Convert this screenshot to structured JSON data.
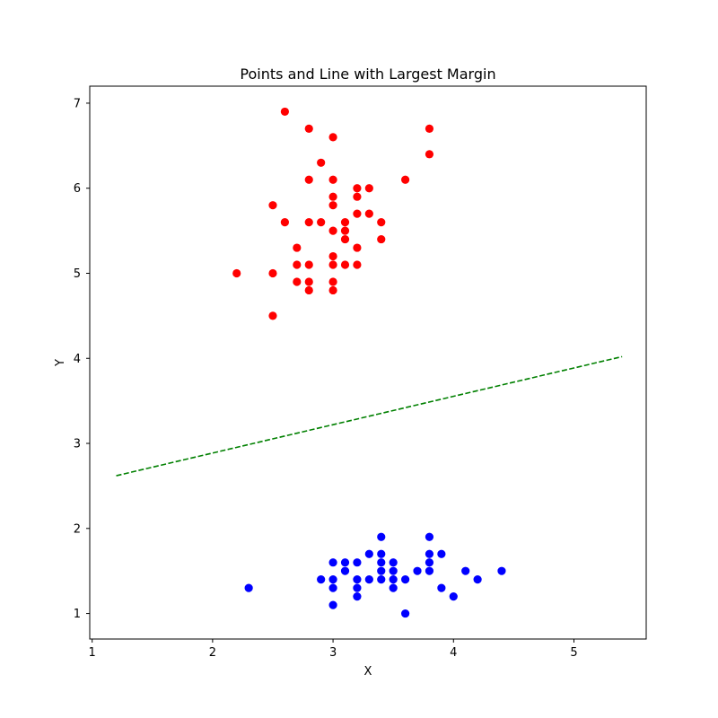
{
  "chart_data": {
    "type": "scatter",
    "title": "Points and Line with Largest Margin",
    "xlabel": "X",
    "ylabel": "Y",
    "xlim": [
      0.98,
      5.6
    ],
    "ylim": [
      0.7,
      7.2
    ],
    "xticks": [
      1,
      2,
      3,
      4,
      5
    ],
    "yticks": [
      1,
      2,
      3,
      4,
      5,
      6,
      7
    ],
    "grid": false,
    "legend": "none",
    "series": [
      {
        "kind": "points",
        "color": "#ff0000",
        "points": [
          [
            2.6,
            6.9
          ],
          [
            3.8,
            6.7
          ],
          [
            2.8,
            6.7
          ],
          [
            3.0,
            6.6
          ],
          [
            3.8,
            6.4
          ],
          [
            2.9,
            6.3
          ],
          [
            2.8,
            6.1
          ],
          [
            3.0,
            6.1
          ],
          [
            3.6,
            6.1
          ],
          [
            3.2,
            6.0
          ],
          [
            3.3,
            6.0
          ],
          [
            3.0,
            5.9
          ],
          [
            3.2,
            5.9
          ],
          [
            2.5,
            5.8
          ],
          [
            3.0,
            5.8
          ],
          [
            3.2,
            5.7
          ],
          [
            3.3,
            5.7
          ],
          [
            2.6,
            5.6
          ],
          [
            2.8,
            5.6
          ],
          [
            2.9,
            5.6
          ],
          [
            3.1,
            5.6
          ],
          [
            3.4,
            5.6
          ],
          [
            3.0,
            5.5
          ],
          [
            3.1,
            5.5
          ],
          [
            3.1,
            5.4
          ],
          [
            3.4,
            5.4
          ],
          [
            2.7,
            5.3
          ],
          [
            3.2,
            5.3
          ],
          [
            3.0,
            5.2
          ],
          [
            2.7,
            5.1
          ],
          [
            2.8,
            5.1
          ],
          [
            3.0,
            5.1
          ],
          [
            3.1,
            5.1
          ],
          [
            3.2,
            5.1
          ],
          [
            2.2,
            5.0
          ],
          [
            2.5,
            5.0
          ],
          [
            2.7,
            4.9
          ],
          [
            2.8,
            4.9
          ],
          [
            3.0,
            4.9
          ],
          [
            2.8,
            4.8
          ],
          [
            3.0,
            4.8
          ],
          [
            2.5,
            4.5
          ]
        ]
      },
      {
        "kind": "points",
        "color": "#0000ff",
        "points": [
          [
            3.4,
            1.9
          ],
          [
            3.8,
            1.9
          ],
          [
            3.3,
            1.7
          ],
          [
            3.4,
            1.7
          ],
          [
            3.8,
            1.7
          ],
          [
            3.9,
            1.7
          ],
          [
            3.0,
            1.6
          ],
          [
            3.1,
            1.6
          ],
          [
            3.2,
            1.6
          ],
          [
            3.4,
            1.6
          ],
          [
            3.5,
            1.6
          ],
          [
            3.8,
            1.6
          ],
          [
            3.1,
            1.5
          ],
          [
            3.4,
            1.5
          ],
          [
            3.5,
            1.5
          ],
          [
            3.7,
            1.5
          ],
          [
            3.8,
            1.5
          ],
          [
            4.1,
            1.5
          ],
          [
            4.4,
            1.5
          ],
          [
            2.9,
            1.4
          ],
          [
            3.0,
            1.4
          ],
          [
            3.2,
            1.4
          ],
          [
            3.3,
            1.4
          ],
          [
            3.4,
            1.4
          ],
          [
            3.5,
            1.4
          ],
          [
            3.6,
            1.4
          ],
          [
            4.2,
            1.4
          ],
          [
            2.3,
            1.3
          ],
          [
            3.0,
            1.3
          ],
          [
            3.2,
            1.3
          ],
          [
            3.5,
            1.3
          ],
          [
            3.9,
            1.3
          ],
          [
            3.2,
            1.2
          ],
          [
            4.0,
            1.2
          ],
          [
            3.0,
            1.1
          ],
          [
            3.6,
            1.0
          ]
        ]
      },
      {
        "kind": "dashed-line",
        "color": "#008000",
        "points": [
          [
            1.2,
            2.62
          ],
          [
            5.4,
            4.02
          ]
        ]
      }
    ]
  }
}
